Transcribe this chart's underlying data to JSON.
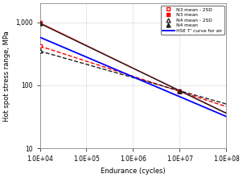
{
  "xlabel": "Endurance (cycles)",
  "ylabel": "Hot spot stress range, MPa",
  "xlim": [
    10000.0,
    100000000.0
  ],
  "ylim": [
    10,
    2000
  ],
  "lines": [
    {
      "name": "N3_mean_2SD",
      "x0": 10000.0,
      "y0": 420,
      "x1": 10000000.0,
      "y1": 80,
      "color": "#FF0000",
      "linestyle": "--",
      "marker": "s",
      "markerfacecolor": "white",
      "label": "N3 mean - 2SD",
      "lw": 1.0
    },
    {
      "name": "N3_mean",
      "x0": 10000.0,
      "y0": 980,
      "x1": 10000000.0,
      "y1": 82,
      "color": "#FF0000",
      "linestyle": "-",
      "marker": "s",
      "markerfacecolor": "#FF0000",
      "label": "N3 mean",
      "lw": 1.0
    },
    {
      "name": "N4_mean_2SD",
      "x0": 10000.0,
      "y0": 350,
      "x1": 10000000.0,
      "y1": 82,
      "color": "#222222",
      "linestyle": "--",
      "marker": "^",
      "markerfacecolor": "white",
      "label": "N4 mean - 2SD",
      "lw": 1.0
    },
    {
      "name": "N4_mean",
      "x0": 10000.0,
      "y0": 960,
      "x1": 10000000.0,
      "y1": 82,
      "color": "#222222",
      "linestyle": "-",
      "marker": "^",
      "markerfacecolor": "#222222",
      "label": "N4 mean",
      "lw": 1.0
    },
    {
      "name": "HSE",
      "x0": 10000.0,
      "y0": 580,
      "x1": 100000000.0,
      "y1": 32,
      "color": "#0000FF",
      "linestyle": "-",
      "marker": null,
      "markerfacecolor": null,
      "label": "HSE T' curve for air",
      "lw": 1.3
    }
  ],
  "background_color": "#FFFFFF"
}
